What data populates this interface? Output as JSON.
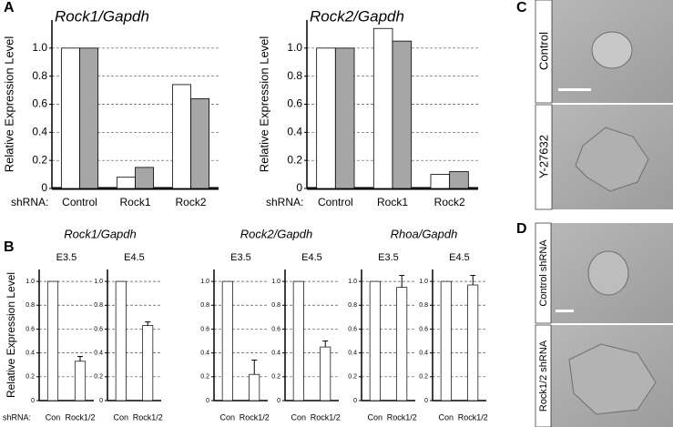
{
  "panel_labels": [
    "A",
    "B",
    "C",
    "D"
  ],
  "images": {
    "C": [
      "Control",
      "Y-27632"
    ],
    "D": [
      "Control shRNA",
      "Rock1/2 shRNA"
    ]
  },
  "chart_data": [
    {
      "type": "bar",
      "title": "Rock1/Gapdh",
      "ylabel": "Relative Expression Level",
      "x_prefix": "shRNA:",
      "categories": [
        "Control",
        "Rock1",
        "Rock2"
      ],
      "series": [
        {
          "color": "#ffffff",
          "values": [
            1.0,
            0.08,
            0.74
          ]
        },
        {
          "color": "#a6a6a6",
          "values": [
            1.0,
            0.15,
            0.64
          ]
        }
      ],
      "ylim": [
        0,
        1.2
      ],
      "yticks": [
        0,
        0.2,
        0.4,
        0.6,
        0.8,
        {
          "value": 1,
          "label": "1.0"
        }
      ],
      "grid": true
    },
    {
      "type": "bar",
      "title": "Rock2/Gapdh",
      "ylabel": "Relative Expression Level",
      "x_prefix": "shRNA:",
      "categories": [
        "Control",
        "Rock1",
        "Rock2"
      ],
      "series": [
        {
          "color": "#ffffff",
          "values": [
            1.0,
            1.14,
            0.1
          ]
        },
        {
          "color": "#a6a6a6",
          "values": [
            1.0,
            1.05,
            0.12
          ]
        }
      ],
      "ylim": [
        0,
        1.2
      ],
      "yticks": [
        0,
        0.2,
        0.4,
        0.6,
        0.8,
        {
          "value": 1,
          "label": "1.0"
        }
      ],
      "grid": true
    },
    {
      "type": "bar",
      "title": "Rock1/Gapdh",
      "ylabel": "Relative Expression Level",
      "x_prefix": "shRNA:",
      "ylim": [
        0,
        1.1
      ],
      "yticks": [
        0,
        0.2,
        0.4,
        0.6,
        0.8,
        {
          "value": 1,
          "label": "1.0"
        }
      ],
      "grid": true,
      "color": "#ffffff",
      "panels": [
        {
          "subtitle": "E3.5",
          "categories": [
            "Con",
            "Rock1/2"
          ],
          "values": [
            1.0,
            0.33
          ],
          "errors": [
            null,
            0.04
          ]
        },
        {
          "subtitle": "E4.5",
          "categories": [
            "Con",
            "Rock1/2"
          ],
          "values": [
            1.0,
            0.63
          ],
          "errors": [
            null,
            0.03
          ]
        }
      ]
    },
    {
      "type": "bar",
      "title": "Rock2/Gapdh",
      "ylim": [
        0,
        1.1
      ],
      "yticks": [
        0,
        0.2,
        0.4,
        0.6,
        0.8,
        {
          "value": 1,
          "label": "1.0"
        }
      ],
      "grid": true,
      "color": "#ffffff",
      "panels": [
        {
          "subtitle": "E3.5",
          "categories": [
            "Con",
            "Rock1/2"
          ],
          "values": [
            1.0,
            0.22
          ],
          "errors": [
            null,
            0.12
          ]
        },
        {
          "subtitle": "E4.5",
          "categories": [
            "Con",
            "Rock1/2"
          ],
          "values": [
            1.0,
            0.45
          ],
          "errors": [
            null,
            0.05
          ]
        }
      ]
    },
    {
      "type": "bar",
      "title": "Rhoa/Gapdh",
      "ylim": [
        0,
        1.1
      ],
      "yticks": [
        0,
        0.2,
        0.4,
        0.6,
        0.8,
        {
          "value": 1,
          "label": "1.0"
        }
      ],
      "grid": true,
      "color": "#ffffff",
      "panels": [
        {
          "subtitle": "E3.5",
          "categories": [
            "Con",
            "Rock1/2"
          ],
          "values": [
            1.0,
            0.95
          ],
          "errors": [
            null,
            0.1
          ]
        },
        {
          "subtitle": "E4.5",
          "categories": [
            "Con",
            "Rock1/2"
          ],
          "values": [
            1.0,
            0.97
          ],
          "errors": [
            null,
            0.08
          ]
        }
      ]
    }
  ]
}
